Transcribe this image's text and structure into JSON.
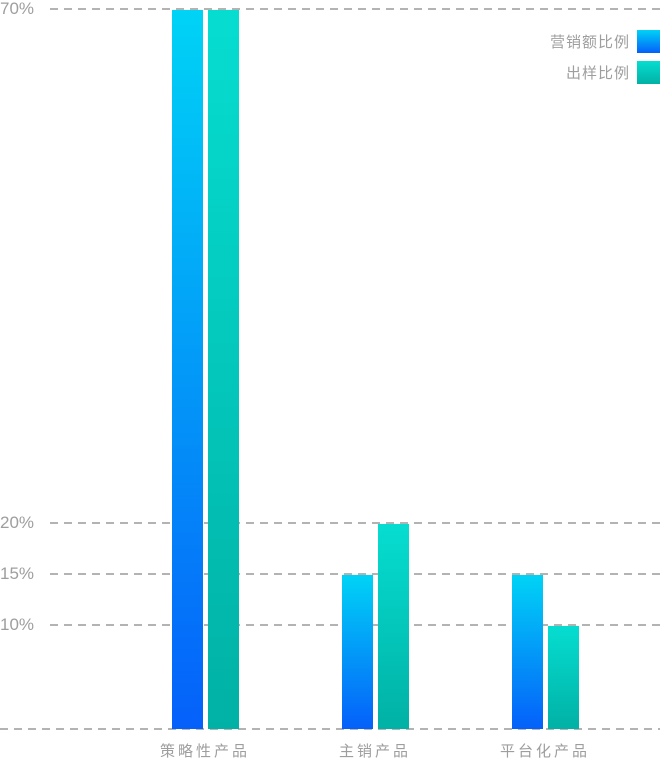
{
  "chart_data": {
    "type": "bar",
    "title": "",
    "xlabel": "",
    "ylabel": "",
    "categories": [
      "策略性产品",
      "主销产品",
      "平台化产品"
    ],
    "series": [
      {
        "name": "营销额比例",
        "values": [
          70,
          15,
          15
        ],
        "gradient_top": "#00d3f6",
        "gradient_bottom": "#0560fa"
      },
      {
        "name": "出样比例",
        "values": [
          70,
          20,
          10
        ],
        "gradient_top": "#06ddd1",
        "gradient_bottom": "#01b1a5"
      }
    ],
    "y_ticks": [
      {
        "label": "70%",
        "value": 70
      },
      {
        "label": "20%",
        "value": 20
      },
      {
        "label": "15%",
        "value": 15
      },
      {
        "label": "10%",
        "value": 10
      }
    ],
    "ylim": [
      0,
      70
    ],
    "grid": "dashed-horizontal",
    "baseline_tick": {
      "value": 0,
      "label": ""
    },
    "legend_position": "top-right",
    "colors": {
      "axis_text": "#9e9e9e",
      "grid_dash": "#b3b3b3",
      "background": "#ffffff"
    }
  }
}
